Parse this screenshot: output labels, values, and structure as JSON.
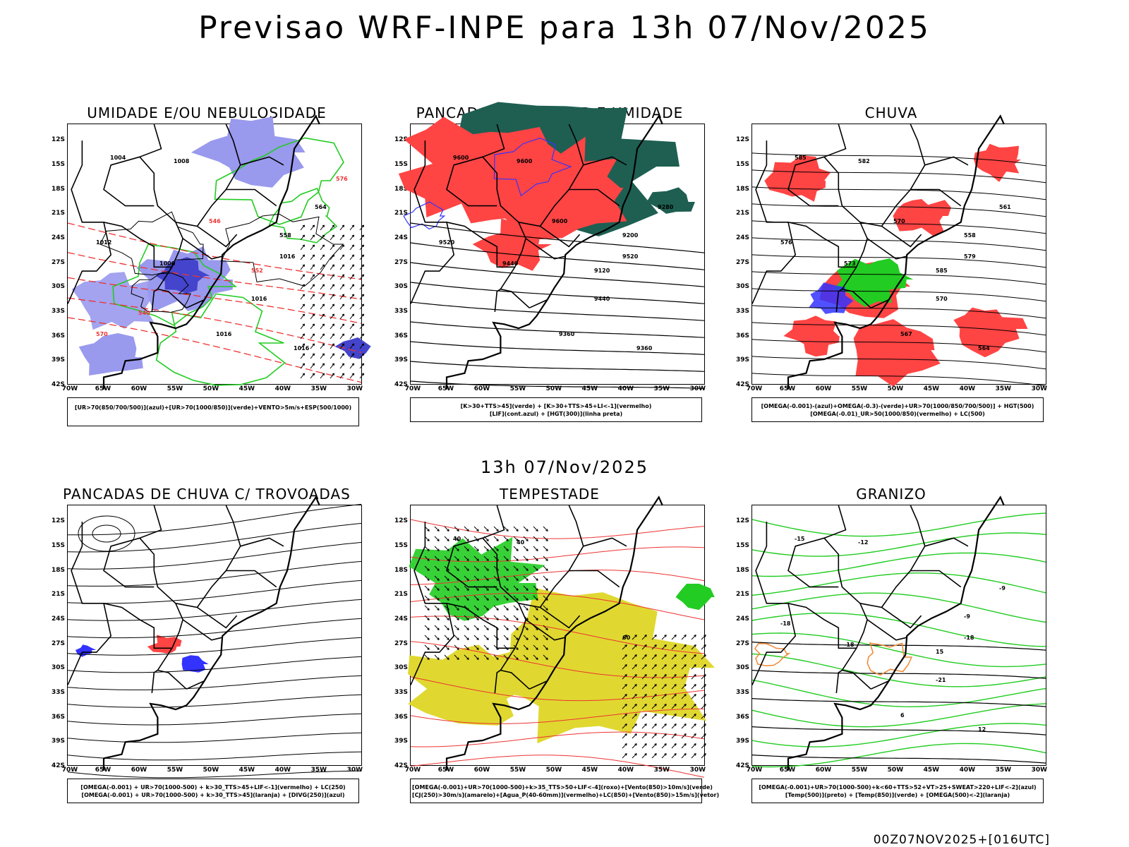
{
  "title": "Previsao WRF-INPE  para 13h 07/Nov/2025",
  "row_title": "13h 07/Nov/2025",
  "footer": "00Z07NOV2025+[016UTC]",
  "lat_ticks": [
    "12S",
    "15S",
    "18S",
    "21S",
    "24S",
    "27S",
    "30S",
    "33S",
    "36S",
    "39S",
    "42S"
  ],
  "lon_ticks": [
    "70W",
    "65W",
    "60W",
    "55W",
    "50W",
    "45W",
    "40W",
    "35W",
    "30W"
  ],
  "colors": {
    "humidity_blue": "#9999ee",
    "humidity_dark": "#4444cc",
    "green": "#22cc22",
    "dark_green": "#1e5f52",
    "red_area": "#ff4444",
    "blue_line": "#3333ff",
    "yellow_area": "#e0d830",
    "orange": "#ee8833",
    "red_line": "#ee3333"
  },
  "panels": [
    {
      "title": "UMIDADE E/OU NEBULOSIDADE",
      "legend": [
        "[UR>70(850/700/500)](azul)+[UR>70(1000/850)](verde)+VENTO>5m/s+ESP(500/1000)"
      ],
      "labels": [
        "1004",
        "1008",
        "1016",
        "1012",
        "1000",
        "1016",
        "1016",
        "1016",
        "564",
        "558",
        "552",
        "546",
        "540",
        "576",
        "570"
      ]
    },
    {
      "title": "PANCADAS POR CALOR E UMIDADE",
      "legend": [
        "[K>30+TTS>45](verde) + [K>30+TTS>45+LI<-1](vermelho)",
        "[LIF](cont.azul) + [HGT(300)](linha preta)"
      ],
      "labels": [
        "9600",
        "9600",
        "9520",
        "9520",
        "9440",
        "9440",
        "9360",
        "9360",
        "9280",
        "9200",
        "9120",
        "9600"
      ]
    },
    {
      "title": "CHUVA",
      "legend": [
        "[OMEGA(-0.001)-(azul)+OMEGA(-0.3)-(verde)+UR>70(1000/850/700/500)] + HGT(500)",
        "[OMEGA(-0.01)_UR>50(1000/850)(vermelho) + LC(500)"
      ],
      "labels": [
        "585",
        "582",
        "579",
        "576",
        "573",
        "570",
        "567",
        "564",
        "561",
        "558",
        "585",
        "570"
      ]
    },
    {
      "title": "PANCADAS DE CHUVA C/ TROVOADAS",
      "legend": [
        "[OMEGA(-0.001) + UR>70(1000-500) + k>30_TTS>45+LIF<-1](vermelho) + LC(250)",
        "[OMEGA(-0.001) + UR>70(1000-500) + k>30_TTS>45](laranja) + [DIVG(250)](azul)"
      ],
      "labels": []
    },
    {
      "title": "TEMPESTADE",
      "legend": [
        "[OMEGA(-0.001)+UR>70(1000-500)+k>35_TTS>50+LIF<-4](roxo)+[Vento(850)>10m/s](verde)",
        "[CJ(250)>30m/s](amarelo)+[Agua_P(40-60mm)](vermelho)+LC(850)+[Vento(850)>15m/s](vetor)"
      ],
      "labels": [
        "40",
        "40",
        "60"
      ]
    },
    {
      "title": "GRANIZO",
      "legend": [
        "[OMEGA(-0.001)+UR>70(1000-500)+k<60+TTS>52+VT>25+SWEAT>220+LIF<-2](azul)",
        "[Temp(500)](preto) + [Temp(850)](verde) + [OMEGA(500)<-2](laranja)"
      ],
      "labels": [
        "-15",
        "-12",
        "-18",
        "-18",
        "-18",
        "-21",
        "6",
        "12",
        "-9",
        "-9",
        "15"
      ]
    }
  ]
}
